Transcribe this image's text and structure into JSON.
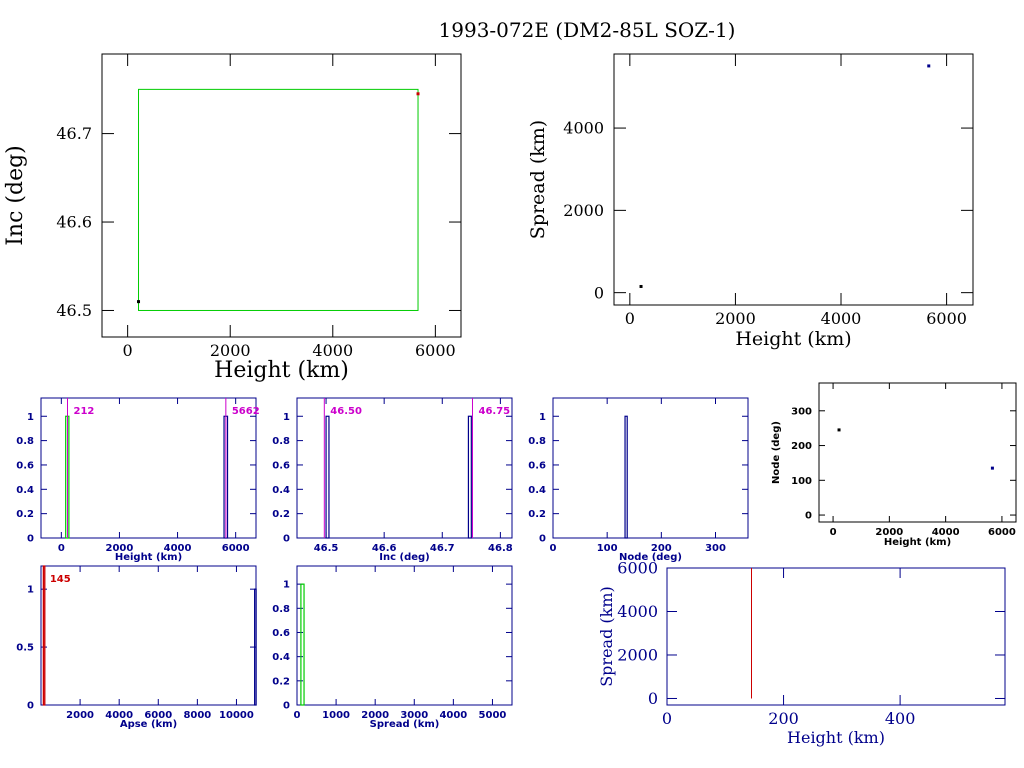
{
  "title": "1993-072E (DM2-85L SOZ-1)",
  "colors": {
    "black": "#000000",
    "blue": "#00008b",
    "green": "#00cc00",
    "magenta": "#cc00cc",
    "red": "#cc0000"
  },
  "chart_data": [
    {
      "id": "inc_vs_height",
      "type": "scatter",
      "xlabel": "Height (km)",
      "ylabel": "Inc (deg)",
      "xlim": [
        -500,
        6500
      ],
      "ylim": [
        46.47,
        46.79
      ],
      "xticks": [
        0,
        2000,
        4000,
        6000
      ],
      "yticks": [
        46.5,
        46.6,
        46.7
      ],
      "ytick_labels": [
        "46.5",
        "46.6",
        "46.7"
      ],
      "box": {
        "x": [
          212,
          5662
        ],
        "y": [
          46.5,
          46.75
        ]
      },
      "points": [
        {
          "x": 212,
          "y": 46.51,
          "color": "black"
        },
        {
          "x": 5662,
          "y": 46.745,
          "color": "red"
        }
      ]
    },
    {
      "id": "spread_vs_height",
      "type": "scatter",
      "xlabel": "Height (km)",
      "ylabel": "Spread (km)",
      "xlim": [
        -300,
        6500
      ],
      "ylim": [
        -300,
        5800
      ],
      "xticks": [
        0,
        2000,
        4000,
        6000
      ],
      "yticks": [
        0,
        2000,
        4000
      ],
      "points": [
        {
          "x": 212,
          "y": 150,
          "color": "black"
        },
        {
          "x": 5662,
          "y": 5510,
          "color": "blue"
        }
      ]
    },
    {
      "id": "height_hist",
      "type": "bar",
      "xlabel": "Height (km)",
      "xlim": [
        -700,
        6700
      ],
      "ylim": [
        0,
        1.15
      ],
      "xticks": [
        0,
        2000,
        4000,
        6000
      ],
      "yticks": [
        0,
        0.2,
        0.4,
        0.6,
        0.8,
        1
      ],
      "ytick_labels": [
        "0",
        "0.2",
        "0.4",
        "0.6",
        "0.8",
        "1"
      ],
      "bars": [
        {
          "x0": 150,
          "x1": 260,
          "y": 1,
          "color": "green"
        },
        {
          "x0": 5600,
          "x1": 5720,
          "y": 1,
          "color": "blue"
        }
      ],
      "markers": [
        {
          "x": 212,
          "label": "212"
        },
        {
          "x": 5662,
          "label": "5662"
        }
      ]
    },
    {
      "id": "inc_hist",
      "type": "bar",
      "xlabel": "Inc (deg)",
      "xlim": [
        46.45,
        46.82
      ],
      "ylim": [
        0,
        1.15
      ],
      "xticks": [
        46.5,
        46.6,
        46.7,
        46.8
      ],
      "xtick_labels": [
        "46.5",
        "46.6",
        "46.7",
        "46.8"
      ],
      "yticks": [
        0,
        0.2,
        0.4,
        0.6,
        0.8,
        1
      ],
      "ytick_labels": [
        "0",
        "0.2",
        "0.4",
        "0.6",
        "0.8",
        "1"
      ],
      "bars": [
        {
          "x0": 46.5,
          "x1": 46.505,
          "y": 1,
          "color": "blue"
        },
        {
          "x0": 46.745,
          "x1": 46.75,
          "y": 1,
          "color": "blue"
        }
      ],
      "markers": [
        {
          "x": 46.497,
          "label": "46.50"
        },
        {
          "x": 46.752,
          "label": "46.75"
        }
      ]
    },
    {
      "id": "node_hist",
      "type": "bar",
      "xlabel": "Node (deg)",
      "xlim": [
        0,
        360
      ],
      "ylim": [
        0,
        1.15
      ],
      "xticks": [
        0,
        100,
        200,
        300
      ],
      "yticks": [
        0,
        0.2,
        0.4,
        0.6,
        0.8,
        1
      ],
      "ytick_labels": [
        "0",
        "0.2",
        "0.4",
        "0.6",
        "0.8",
        "1"
      ],
      "bars": [
        {
          "x0": 133,
          "x1": 137,
          "y": 1,
          "color": "blue"
        }
      ]
    },
    {
      "id": "node_vs_height",
      "type": "scatter",
      "xlabel": "Height (km)",
      "ylabel": "Node (deg)",
      "xlim": [
        -500,
        6500
      ],
      "ylim": [
        -20,
        380
      ],
      "xticks": [
        0,
        2000,
        4000,
        6000
      ],
      "yticks": [
        0,
        100,
        200,
        300
      ],
      "points": [
        {
          "x": 212,
          "y": 245,
          "color": "black"
        },
        {
          "x": 5662,
          "y": 135,
          "color": "blue"
        }
      ]
    },
    {
      "id": "apse_hist",
      "type": "bar",
      "xlabel": "Apse (km)",
      "xlim": [
        0,
        11000
      ],
      "ylim": [
        0,
        1.2
      ],
      "xticks": [
        2000,
        4000,
        6000,
        8000,
        10000
      ],
      "yticks": [
        0,
        0.5,
        1
      ],
      "ytick_labels": [
        "0",
        "0.5",
        "1"
      ],
      "bars": [
        {
          "x0": 120,
          "x1": 170,
          "y": 1.2,
          "color": "red"
        },
        {
          "x0": 10930,
          "x1": 10980,
          "y": 1,
          "color": "blue"
        }
      ],
      "markers": [
        {
          "x": 145,
          "label": "145"
        }
      ]
    },
    {
      "id": "spread_hist",
      "type": "bar",
      "xlabel": "Spread (km)",
      "xlim": [
        0,
        5500
      ],
      "ylim": [
        0,
        1.15
      ],
      "xticks": [
        0,
        1000,
        2000,
        3000,
        4000,
        5000
      ],
      "yticks": [
        0,
        0.2,
        0.4,
        0.6,
        0.8,
        1
      ],
      "ytick_labels": [
        "0",
        "0.2",
        "0.4",
        "0.6",
        "0.8",
        "1"
      ],
      "bars": [
        {
          "x0": 100,
          "x1": 180,
          "y": 1,
          "color": "green"
        }
      ]
    },
    {
      "id": "spread_vs_height_small",
      "type": "line",
      "xlabel": "Height (km)",
      "ylabel": "Spread (km)",
      "xlim": [
        0,
        580
      ],
      "ylim": [
        -300,
        6000
      ],
      "xticks": [
        0,
        200,
        400
      ],
      "yticks": [
        0,
        2000,
        4000,
        6000
      ],
      "line": {
        "x": 145,
        "y0": 0,
        "y1": 6000,
        "color": "red"
      }
    }
  ]
}
